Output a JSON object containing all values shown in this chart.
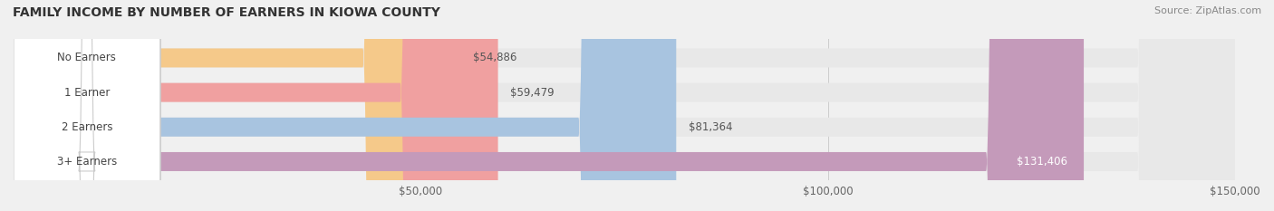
{
  "title": "FAMILY INCOME BY NUMBER OF EARNERS IN KIOWA COUNTY",
  "source": "Source: ZipAtlas.com",
  "categories": [
    "No Earners",
    "1 Earner",
    "2 Earners",
    "3+ Earners"
  ],
  "values": [
    54886,
    59479,
    81364,
    131406
  ],
  "bar_colors": [
    "#f5c98a",
    "#f0a0a0",
    "#a8c4e0",
    "#c49aba"
  ],
  "label_value_texts": [
    "$54,886",
    "$59,479",
    "$81,364",
    "$131,406"
  ],
  "bg_color": "#f0f0f0",
  "bar_bg_color": "#e8e8e8",
  "xlim": [
    0,
    150000
  ],
  "xticks": [
    50000,
    100000,
    150000
  ],
  "xtick_labels": [
    "$50,000",
    "$100,000",
    "$150,000"
  ],
  "bar_height": 0.55,
  "label_box_color": "#ffffff",
  "label_text_color": "#444444",
  "value_text_color_inside": "#ffffff",
  "value_text_color_outside": "#555555"
}
